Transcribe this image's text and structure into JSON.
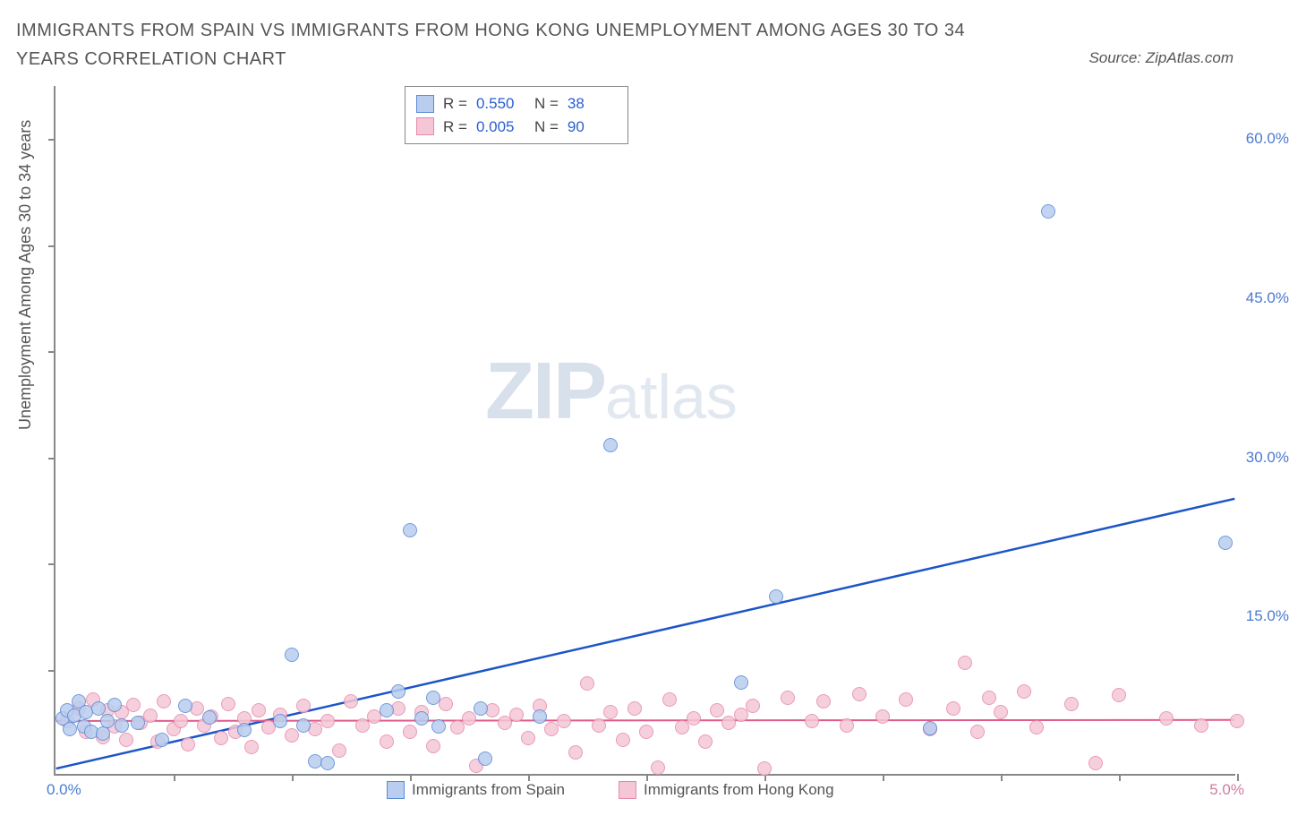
{
  "title": "IMMIGRANTS FROM SPAIN VS IMMIGRANTS FROM HONG KONG UNEMPLOYMENT AMONG AGES 30 TO 34 YEARS CORRELATION CHART",
  "source": "Source: ZipAtlas.com",
  "ylabel": "Unemployment Among Ages 30 to 34 years",
  "watermark_a": "ZIP",
  "watermark_b": "atlas",
  "chart": {
    "type": "scatter",
    "background_color": "#ffffff",
    "axis_color": "#888888",
    "xlim": [
      0.0,
      5.0
    ],
    "ylim": [
      0.0,
      65.0
    ],
    "x_ticks_marks": [
      0.5,
      1.0,
      1.5,
      2.0,
      2.5,
      3.0,
      3.5,
      4.0,
      4.5,
      5.0
    ],
    "y_ticks_marks": [
      10,
      20,
      30,
      40,
      50,
      60
    ],
    "y_tick_labels": [
      {
        "v": 15.0,
        "label": "15.0%"
      },
      {
        "v": 30.0,
        "label": "30.0%"
      },
      {
        "v": 45.0,
        "label": "45.0%"
      },
      {
        "v": 60.0,
        "label": "60.0%"
      }
    ],
    "x_tick_left": "0.0%",
    "x_tick_right": "5.0%",
    "y_tick_color": "#4a7bd0",
    "x_left_color": "#4a7bd0",
    "x_right_color": "#d07ba0",
    "marker_radius": 8,
    "marker_stroke_width": 1.5,
    "marker_fill_opacity": 0.25,
    "series": [
      {
        "name": "Immigrants from Spain",
        "color_fill": "#b9cdee",
        "color_stroke": "#5a8ad6",
        "stats": {
          "R": "0.550",
          "N": "38"
        },
        "trend": {
          "x1": 0.0,
          "y1": 0.5,
          "x2": 5.0,
          "y2": 26.0,
          "color": "#1b55c7",
          "width": 2.5
        },
        "points": [
          [
            0.03,
            5.2
          ],
          [
            0.05,
            6.0
          ],
          [
            0.06,
            4.2
          ],
          [
            0.08,
            5.5
          ],
          [
            0.1,
            6.8
          ],
          [
            0.12,
            4.5
          ],
          [
            0.13,
            5.8
          ],
          [
            0.15,
            4.0
          ],
          [
            0.18,
            6.2
          ],
          [
            0.2,
            3.8
          ],
          [
            0.22,
            5.0
          ],
          [
            0.25,
            6.5
          ],
          [
            0.28,
            4.6
          ],
          [
            0.35,
            4.8
          ],
          [
            0.45,
            3.2
          ],
          [
            0.55,
            6.4
          ],
          [
            0.65,
            5.3
          ],
          [
            0.8,
            4.1
          ],
          [
            0.95,
            5.0
          ],
          [
            1.0,
            11.2
          ],
          [
            1.05,
            4.6
          ],
          [
            1.1,
            1.2
          ],
          [
            1.15,
            1.0
          ],
          [
            1.4,
            6.0
          ],
          [
            1.45,
            7.8
          ],
          [
            1.5,
            23.0
          ],
          [
            1.55,
            5.2
          ],
          [
            1.6,
            7.2
          ],
          [
            1.62,
            4.5
          ],
          [
            1.8,
            6.2
          ],
          [
            1.82,
            1.4
          ],
          [
            2.05,
            5.4
          ],
          [
            2.35,
            31.0
          ],
          [
            2.9,
            8.6
          ],
          [
            3.05,
            16.7
          ],
          [
            3.7,
            4.3
          ],
          [
            4.2,
            53.0
          ],
          [
            4.95,
            21.8
          ]
        ]
      },
      {
        "name": "Immigrants from Hong Kong",
        "color_fill": "#f5c7d6",
        "color_stroke": "#e68aad",
        "stats": {
          "R": "0.005",
          "N": "90"
        },
        "trend": {
          "x1": 0.0,
          "y1": 5.0,
          "x2": 5.0,
          "y2": 5.1,
          "color": "#e05a8c",
          "width": 2
        },
        "points": [
          [
            0.05,
            5.0
          ],
          [
            0.1,
            6.2
          ],
          [
            0.13,
            4.0
          ],
          [
            0.16,
            7.0
          ],
          [
            0.2,
            3.5
          ],
          [
            0.22,
            6.0
          ],
          [
            0.25,
            4.5
          ],
          [
            0.28,
            5.8
          ],
          [
            0.3,
            3.2
          ],
          [
            0.33,
            6.5
          ],
          [
            0.36,
            4.8
          ],
          [
            0.4,
            5.5
          ],
          [
            0.43,
            3.0
          ],
          [
            0.46,
            6.8
          ],
          [
            0.5,
            4.2
          ],
          [
            0.53,
            5.0
          ],
          [
            0.56,
            2.8
          ],
          [
            0.6,
            6.2
          ],
          [
            0.63,
            4.6
          ],
          [
            0.66,
            5.4
          ],
          [
            0.7,
            3.4
          ],
          [
            0.73,
            6.6
          ],
          [
            0.76,
            4.0
          ],
          [
            0.8,
            5.2
          ],
          [
            0.83,
            2.5
          ],
          [
            0.86,
            6.0
          ],
          [
            0.9,
            4.4
          ],
          [
            0.95,
            5.6
          ],
          [
            1.0,
            3.6
          ],
          [
            1.05,
            6.4
          ],
          [
            1.1,
            4.2
          ],
          [
            1.15,
            5.0
          ],
          [
            1.2,
            2.2
          ],
          [
            1.25,
            6.8
          ],
          [
            1.3,
            4.6
          ],
          [
            1.35,
            5.4
          ],
          [
            1.4,
            3.0
          ],
          [
            1.45,
            6.2
          ],
          [
            1.5,
            4.0
          ],
          [
            1.55,
            5.8
          ],
          [
            1.6,
            2.6
          ],
          [
            1.65,
            6.6
          ],
          [
            1.7,
            4.4
          ],
          [
            1.75,
            5.2
          ],
          [
            1.78,
            0.8
          ],
          [
            1.85,
            6.0
          ],
          [
            1.9,
            4.8
          ],
          [
            1.95,
            5.6
          ],
          [
            2.0,
            3.4
          ],
          [
            2.05,
            6.4
          ],
          [
            2.1,
            4.2
          ],
          [
            2.15,
            5.0
          ],
          [
            2.2,
            2.0
          ],
          [
            2.25,
            8.5
          ],
          [
            2.3,
            4.6
          ],
          [
            2.35,
            5.8
          ],
          [
            2.4,
            3.2
          ],
          [
            2.45,
            6.2
          ],
          [
            2.5,
            4.0
          ],
          [
            2.55,
            0.6
          ],
          [
            2.6,
            7.0
          ],
          [
            2.65,
            4.4
          ],
          [
            2.7,
            5.2
          ],
          [
            2.75,
            3.0
          ],
          [
            2.8,
            6.0
          ],
          [
            2.85,
            4.8
          ],
          [
            2.9,
            5.6
          ],
          [
            2.95,
            6.4
          ],
          [
            3.0,
            0.5
          ],
          [
            3.1,
            7.2
          ],
          [
            3.2,
            5.0
          ],
          [
            3.25,
            6.8
          ],
          [
            3.35,
            4.6
          ],
          [
            3.4,
            7.5
          ],
          [
            3.5,
            5.4
          ],
          [
            3.6,
            7.0
          ],
          [
            3.7,
            4.2
          ],
          [
            3.8,
            6.2
          ],
          [
            3.85,
            10.5
          ],
          [
            3.9,
            4.0
          ],
          [
            3.95,
            7.2
          ],
          [
            4.0,
            5.8
          ],
          [
            4.1,
            7.8
          ],
          [
            4.15,
            4.4
          ],
          [
            4.3,
            6.6
          ],
          [
            4.4,
            1.0
          ],
          [
            4.5,
            7.4
          ],
          [
            4.7,
            5.2
          ],
          [
            4.85,
            4.6
          ],
          [
            5.0,
            5.0
          ]
        ]
      }
    ]
  },
  "stats_box": {
    "label_R": "R =",
    "label_N": "N ="
  },
  "bottom_legend": [
    "Immigrants from Spain",
    "Immigrants from Hong Kong"
  ]
}
